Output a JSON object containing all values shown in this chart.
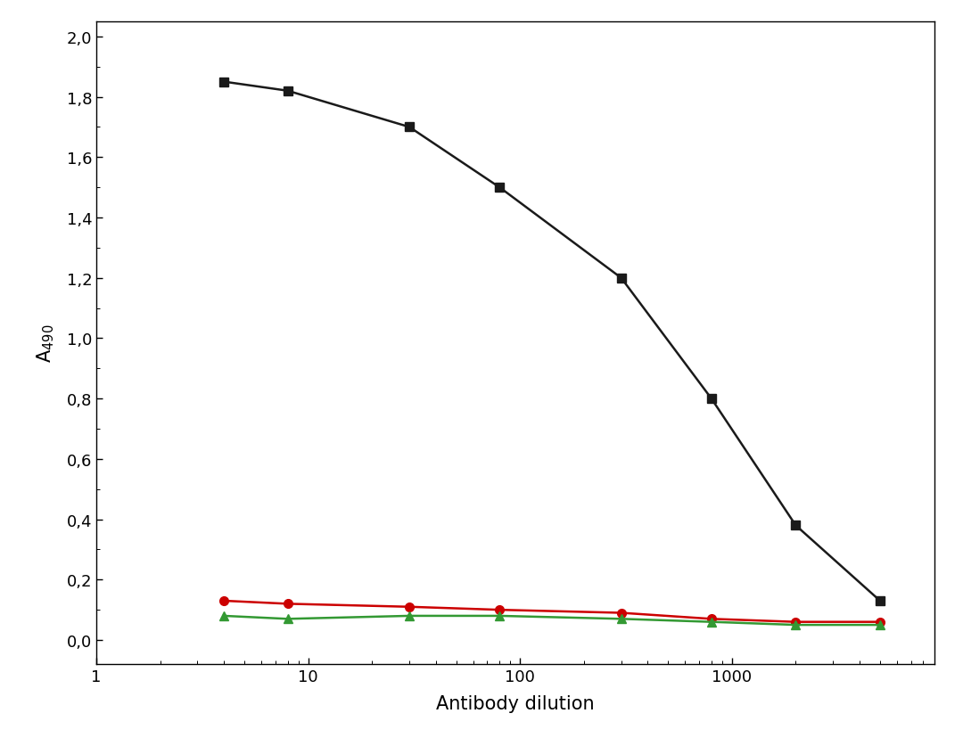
{
  "x_values": [
    4,
    8,
    30,
    80,
    300,
    800,
    2000,
    5000
  ],
  "black_y": [
    1.85,
    1.82,
    1.7,
    1.5,
    1.2,
    0.8,
    0.38,
    0.13
  ],
  "red_y": [
    0.13,
    0.12,
    0.11,
    0.1,
    0.09,
    0.07,
    0.06,
    0.06
  ],
  "green_y": [
    0.08,
    0.07,
    0.08,
    0.08,
    0.07,
    0.06,
    0.05,
    0.05
  ],
  "black_color": "#1a1a1a",
  "red_color": "#cc0000",
  "green_color": "#339933",
  "xlabel": "Antibody dilution",
  "ylim": [
    -0.08,
    2.05
  ],
  "xlim_log": [
    1.5,
    9000
  ],
  "yticks": [
    0.0,
    0.2,
    0.4,
    0.6,
    0.8,
    1.0,
    1.2,
    1.4,
    1.6,
    1.8,
    2.0
  ],
  "ytick_labels": [
    "0,0",
    "0,2",
    "0,4",
    "0,6",
    "0,8",
    "1,0",
    "1,2",
    "1,4",
    "1,6",
    "1,8",
    "2,0"
  ],
  "xtick_positions": [
    1,
    10,
    100,
    1000
  ],
  "xtick_labels": [
    "1",
    "10",
    "100",
    "1000"
  ],
  "background_color": "#ffffff",
  "line_width": 1.8,
  "marker_size": 7
}
